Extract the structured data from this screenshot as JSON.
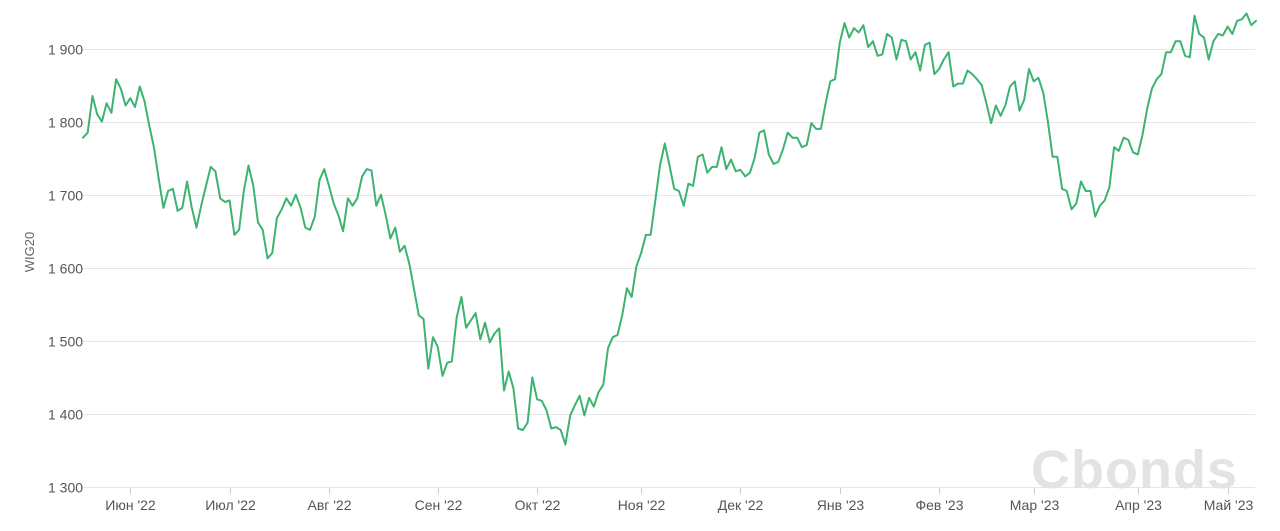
{
  "chart_data": {
    "type": "line",
    "ylabel": "WIG20",
    "ylim": [
      1300,
      1950
    ],
    "yticks": [
      1300,
      1400,
      1500,
      1600,
      1700,
      1800,
      1900
    ],
    "ytick_labels": [
      "1 300",
      "1 400",
      "1 500",
      "1 600",
      "1 700",
      "1 800",
      "1 900"
    ],
    "xticks": [
      {
        "label": "Июн '22",
        "index": 10
      },
      {
        "label": "Июл '22",
        "index": 31
      },
      {
        "label": "Авг '22",
        "index": 52
      },
      {
        "label": "Сен '22",
        "index": 75
      },
      {
        "label": "Окт '22",
        "index": 96
      },
      {
        "label": "Ноя '22",
        "index": 118
      },
      {
        "label": "Дек '22",
        "index": 139
      },
      {
        "label": "Янв '23",
        "index": 160
      },
      {
        "label": "Фев '23",
        "index": 181
      },
      {
        "label": "Мар '23",
        "index": 201
      },
      {
        "label": "Апр '23",
        "index": 223
      },
      {
        "label": "Май '23",
        "index": 242
      }
    ],
    "grid": true,
    "series": [
      {
        "color": "#3cb371",
        "values": [
          1778,
          1785,
          1835,
          1810,
          1800,
          1825,
          1812,
          1858,
          1845,
          1822,
          1832,
          1820,
          1848,
          1828,
          1795,
          1765,
          1722,
          1682,
          1705,
          1708,
          1678,
          1682,
          1718,
          1682,
          1655,
          1685,
          1712,
          1738,
          1732,
          1695,
          1690,
          1692,
          1645,
          1652,
          1705,
          1740,
          1712,
          1662,
          1652,
          1613,
          1620,
          1668,
          1680,
          1695,
          1685,
          1700,
          1682,
          1655,
          1652,
          1670,
          1720,
          1735,
          1712,
          1688,
          1672,
          1650,
          1695,
          1685,
          1695,
          1725,
          1735,
          1733,
          1685,
          1700,
          1672,
          1640,
          1655,
          1622,
          1630,
          1605,
          1570,
          1535,
          1530,
          1462,
          1505,
          1492,
          1452,
          1470,
          1472,
          1532,
          1560,
          1518,
          1528,
          1538,
          1502,
          1525,
          1498,
          1510,
          1517,
          1432,
          1458,
          1435,
          1380,
          1378,
          1388,
          1450,
          1420,
          1418,
          1405,
          1380,
          1382,
          1378,
          1358,
          1398,
          1412,
          1425,
          1398,
          1422,
          1410,
          1430,
          1440,
          1490,
          1505,
          1508,
          1535,
          1572,
          1560,
          1602,
          1620,
          1645,
          1645,
          1692,
          1740,
          1770,
          1740,
          1708,
          1705,
          1685,
          1715,
          1712,
          1752,
          1755,
          1730,
          1738,
          1738,
          1765,
          1735,
          1748,
          1732,
          1734,
          1725,
          1730,
          1750,
          1785,
          1788,
          1755,
          1742,
          1745,
          1762,
          1785,
          1778,
          1778,
          1765,
          1768,
          1798,
          1790,
          1790,
          1825,
          1855,
          1858,
          1908,
          1935,
          1915,
          1928,
          1922,
          1932,
          1902,
          1910,
          1890,
          1892,
          1920,
          1915,
          1885,
          1912,
          1910,
          1885,
          1895,
          1870,
          1905,
          1908,
          1865,
          1872,
          1885,
          1895,
          1848,
          1852,
          1852,
          1870,
          1865,
          1858,
          1850,
          1825,
          1798,
          1822,
          1808,
          1822,
          1848,
          1855,
          1815,
          1830,
          1872,
          1855,
          1860,
          1840,
          1800,
          1752,
          1752,
          1708,
          1705,
          1680,
          1688,
          1718,
          1705,
          1705,
          1670,
          1685,
          1692,
          1710,
          1765,
          1760,
          1778,
          1775,
          1758,
          1755,
          1782,
          1818,
          1845,
          1858,
          1865,
          1895,
          1895,
          1910,
          1910,
          1890,
          1888,
          1945,
          1920,
          1915,
          1885,
          1910,
          1920,
          1918,
          1930,
          1920,
          1938,
          1940,
          1948,
          1932,
          1938
        ]
      }
    ]
  },
  "watermark": "Cbonds"
}
